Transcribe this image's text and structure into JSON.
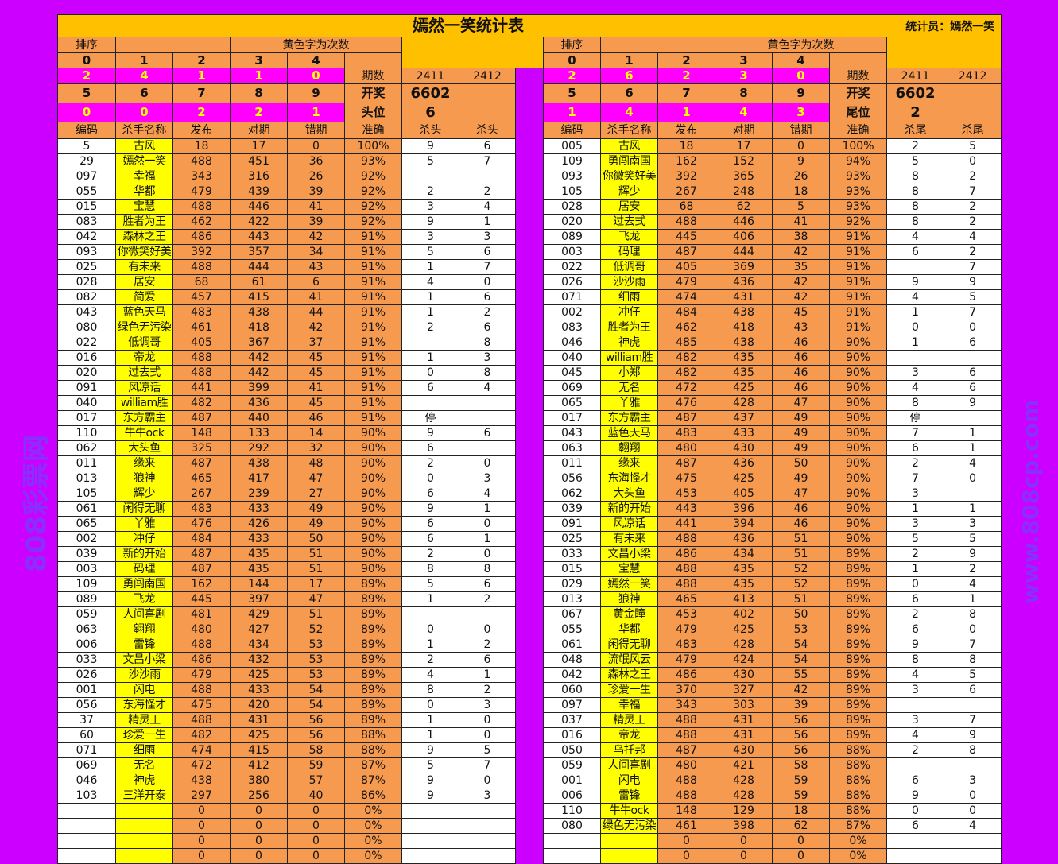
{
  "title": "嫣然一笑统计表",
  "statistician": "统计员：嫣然一笑",
  "watermark": {
    "line1": "808彩票网",
    "line2": "www.808cp.com"
  },
  "colors": {
    "background": "#CC00FF",
    "title_bar": "#FFC000",
    "orange": "#F59A4E",
    "magenta": "#FF00FF",
    "name_yellow": "#FFFF00"
  },
  "left": {
    "sort_label": "排序",
    "yellow_note": "黄色字为次数",
    "digits_a": [
      "0",
      "1",
      "2",
      "3",
      "4"
    ],
    "counts_a": [
      "2",
      "4",
      "1",
      "1",
      "0"
    ],
    "digits_b": [
      "5",
      "6",
      "7",
      "8",
      "9"
    ],
    "counts_b": [
      "0",
      "0",
      "2",
      "2",
      "1"
    ],
    "period_label": "期数",
    "periods": [
      "2411",
      "2412"
    ],
    "draw_label": "开奖",
    "draw": "6602",
    "position_label": "头位",
    "position_value": "6",
    "columns": [
      "编码",
      "杀手名称",
      "发布",
      "对期",
      "错期",
      "准确",
      "杀头",
      "杀头"
    ],
    "rows": [
      [
        "5",
        "古风",
        "18",
        "17",
        "0",
        "100%",
        "9",
        "6"
      ],
      [
        "29",
        "嫣然一笑",
        "488",
        "451",
        "36",
        "93%",
        "5",
        "7"
      ],
      [
        "097",
        "幸福",
        "343",
        "316",
        "26",
        "92%",
        "",
        ""
      ],
      [
        "055",
        "华都",
        "479",
        "439",
        "39",
        "92%",
        "2",
        "2"
      ],
      [
        "015",
        "宝慧",
        "488",
        "446",
        "41",
        "92%",
        "3",
        "4"
      ],
      [
        "083",
        "胜者为王",
        "462",
        "422",
        "39",
        "92%",
        "9",
        "1"
      ],
      [
        "042",
        "森林之王",
        "486",
        "443",
        "42",
        "91%",
        "3",
        "3"
      ],
      [
        "093",
        "你微笑好美",
        "392",
        "357",
        "34",
        "91%",
        "5",
        "6"
      ],
      [
        "025",
        "有未来",
        "488",
        "444",
        "43",
        "91%",
        "1",
        "7"
      ],
      [
        "028",
        "居安",
        "68",
        "61",
        "6",
        "91%",
        "4",
        "0"
      ],
      [
        "082",
        "简爱",
        "457",
        "415",
        "41",
        "91%",
        "1",
        "6"
      ],
      [
        "043",
        "蓝色天马",
        "483",
        "438",
        "44",
        "91%",
        "1",
        "2"
      ],
      [
        "080",
        "绿色无污染",
        "461",
        "418",
        "42",
        "91%",
        "2",
        "6"
      ],
      [
        "022",
        "低调哥",
        "405",
        "367",
        "37",
        "91%",
        "",
        "8"
      ],
      [
        "016",
        "帝龙",
        "488",
        "442",
        "45",
        "91%",
        "1",
        "3"
      ],
      [
        "020",
        "过去式",
        "488",
        "442",
        "45",
        "91%",
        "0",
        "8"
      ],
      [
        "091",
        "风凉话",
        "441",
        "399",
        "41",
        "91%",
        "6",
        "4"
      ],
      [
        "040",
        "william胜",
        "482",
        "436",
        "45",
        "91%",
        "",
        ""
      ],
      [
        "017",
        "东方霸主",
        "487",
        "440",
        "46",
        "91%",
        "停",
        ""
      ],
      [
        "110",
        "牛牛ock",
        "148",
        "133",
        "14",
        "90%",
        "9",
        "6"
      ],
      [
        "062",
        "大头鱼",
        "325",
        "292",
        "32",
        "90%",
        "6",
        ""
      ],
      [
        "011",
        "缘来",
        "487",
        "438",
        "48",
        "90%",
        "2",
        "0"
      ],
      [
        "013",
        "狼神",
        "465",
        "417",
        "47",
        "90%",
        "0",
        "3"
      ],
      [
        "105",
        "辉少",
        "267",
        "239",
        "27",
        "90%",
        "6",
        "4"
      ],
      [
        "061",
        "闲得无聊",
        "483",
        "433",
        "49",
        "90%",
        "9",
        "1"
      ],
      [
        "065",
        "丫雅",
        "476",
        "426",
        "49",
        "90%",
        "6",
        "0"
      ],
      [
        "002",
        "冲仔",
        "484",
        "433",
        "50",
        "90%",
        "6",
        "1"
      ],
      [
        "039",
        "新的开始",
        "487",
        "435",
        "51",
        "90%",
        "2",
        "0"
      ],
      [
        "003",
        "码理",
        "487",
        "435",
        "51",
        "90%",
        "8",
        "8"
      ],
      [
        "109",
        "勇闯南国",
        "162",
        "144",
        "17",
        "89%",
        "5",
        "6"
      ],
      [
        "089",
        "飞龙",
        "445",
        "397",
        "47",
        "89%",
        "1",
        "2"
      ],
      [
        "059",
        "人间喜剧",
        "481",
        "429",
        "51",
        "89%",
        "",
        ""
      ],
      [
        "063",
        "翱翔",
        "480",
        "427",
        "52",
        "89%",
        "0",
        "0"
      ],
      [
        "006",
        "雷锋",
        "488",
        "434",
        "53",
        "89%",
        "1",
        "2"
      ],
      [
        "033",
        "文昌小梁",
        "486",
        "432",
        "53",
        "89%",
        "2",
        "6"
      ],
      [
        "026",
        "沙沙雨",
        "479",
        "425",
        "53",
        "89%",
        "4",
        "1"
      ],
      [
        "001",
        "闪电",
        "488",
        "433",
        "54",
        "89%",
        "8",
        "2"
      ],
      [
        "056",
        "东海怪才",
        "475",
        "420",
        "54",
        "89%",
        "0",
        "3"
      ],
      [
        "37",
        "精灵王",
        "488",
        "431",
        "56",
        "89%",
        "1",
        "0"
      ],
      [
        "60",
        "珍爱一生",
        "482",
        "425",
        "56",
        "88%",
        "1",
        "0"
      ],
      [
        "071",
        "细雨",
        "474",
        "415",
        "58",
        "88%",
        "9",
        "5"
      ],
      [
        "069",
        "无名",
        "472",
        "412",
        "59",
        "87%",
        "5",
        "7"
      ],
      [
        "046",
        "神虎",
        "438",
        "380",
        "57",
        "87%",
        "9",
        "0"
      ],
      [
        "103",
        "三洋开泰",
        "297",
        "256",
        "40",
        "86%",
        "9",
        "3"
      ],
      [
        "",
        "",
        "0",
        "0",
        "0",
        "0%",
        "",
        ""
      ],
      [
        "",
        "",
        "0",
        "0",
        "0",
        "0%",
        "",
        ""
      ],
      [
        "",
        "",
        "0",
        "0",
        "0",
        "0%",
        "",
        ""
      ],
      [
        "",
        "",
        "0",
        "0",
        "0",
        "0%",
        "",
        ""
      ]
    ]
  },
  "right": {
    "sort_label": "排序",
    "yellow_note": "黄色字为次数",
    "digits_a": [
      "0",
      "1",
      "2",
      "3",
      "4"
    ],
    "counts_a": [
      "2",
      "6",
      "2",
      "3",
      "0"
    ],
    "digits_b": [
      "5",
      "6",
      "7",
      "8",
      "9"
    ],
    "counts_b": [
      "1",
      "4",
      "1",
      "4",
      "3"
    ],
    "period_label": "期数",
    "periods": [
      "2411",
      "2412"
    ],
    "draw_label": "开奖",
    "draw": "6602",
    "position_label": "尾位",
    "position_value": "2",
    "columns": [
      "编码",
      "杀手名称",
      "发布",
      "对期",
      "错期",
      "准确",
      "杀尾",
      "杀尾"
    ],
    "rows": [
      [
        "005",
        "古风",
        "18",
        "17",
        "0",
        "100%",
        "2",
        "5"
      ],
      [
        "109",
        "勇闯南国",
        "162",
        "152",
        "9",
        "94%",
        "5",
        "0"
      ],
      [
        "093",
        "你微笑好美",
        "392",
        "365",
        "26",
        "93%",
        "8",
        "2"
      ],
      [
        "105",
        "辉少",
        "267",
        "248",
        "18",
        "93%",
        "8",
        "7"
      ],
      [
        "028",
        "居安",
        "68",
        "62",
        "5",
        "93%",
        "8",
        "2"
      ],
      [
        "020",
        "过去式",
        "488",
        "446",
        "41",
        "92%",
        "8",
        "2"
      ],
      [
        "089",
        "飞龙",
        "445",
        "406",
        "38",
        "91%",
        "4",
        "4"
      ],
      [
        "003",
        "码理",
        "487",
        "444",
        "42",
        "91%",
        "6",
        "2"
      ],
      [
        "022",
        "低调哥",
        "405",
        "369",
        "35",
        "91%",
        "",
        "7"
      ],
      [
        "026",
        "沙沙雨",
        "479",
        "436",
        "42",
        "91%",
        "9",
        "9"
      ],
      [
        "071",
        "细雨",
        "474",
        "431",
        "42",
        "91%",
        "4",
        "5"
      ],
      [
        "002",
        "冲仔",
        "484",
        "438",
        "45",
        "91%",
        "1",
        "7"
      ],
      [
        "083",
        "胜者为王",
        "462",
        "418",
        "43",
        "91%",
        "0",
        "0"
      ],
      [
        "046",
        "神虎",
        "485",
        "438",
        "46",
        "90%",
        "1",
        "6"
      ],
      [
        "040",
        "william胜",
        "482",
        "435",
        "46",
        "90%",
        "",
        ""
      ],
      [
        "045",
        "小郑",
        "482",
        "435",
        "46",
        "90%",
        "3",
        "6"
      ],
      [
        "069",
        "无名",
        "472",
        "425",
        "46",
        "90%",
        "4",
        "6"
      ],
      [
        "065",
        "丫雅",
        "476",
        "428",
        "47",
        "90%",
        "8",
        "9"
      ],
      [
        "017",
        "东方霸主",
        "487",
        "437",
        "49",
        "90%",
        "停",
        ""
      ],
      [
        "043",
        "蓝色天马",
        "483",
        "433",
        "49",
        "90%",
        "7",
        "1"
      ],
      [
        "063",
        "翱翔",
        "480",
        "430",
        "49",
        "90%",
        "6",
        "1"
      ],
      [
        "011",
        "缘来",
        "487",
        "436",
        "50",
        "90%",
        "2",
        "4"
      ],
      [
        "056",
        "东海怪才",
        "475",
        "425",
        "49",
        "90%",
        "7",
        "0"
      ],
      [
        "062",
        "大头鱼",
        "453",
        "405",
        "47",
        "90%",
        "3",
        ""
      ],
      [
        "039",
        "新的开始",
        "443",
        "396",
        "46",
        "90%",
        "1",
        "1"
      ],
      [
        "091",
        "风凉话",
        "441",
        "394",
        "46",
        "90%",
        "3",
        "3"
      ],
      [
        "025",
        "有未来",
        "488",
        "436",
        "51",
        "90%",
        "5",
        "5"
      ],
      [
        "033",
        "文昌小梁",
        "486",
        "434",
        "51",
        "89%",
        "2",
        "9"
      ],
      [
        "015",
        "宝慧",
        "488",
        "435",
        "52",
        "89%",
        "1",
        "2"
      ],
      [
        "029",
        "嫣然一笑",
        "488",
        "435",
        "52",
        "89%",
        "0",
        "4"
      ],
      [
        "013",
        "狼神",
        "465",
        "413",
        "51",
        "89%",
        "6",
        "1"
      ],
      [
        "067",
        "黄金瞳",
        "453",
        "402",
        "50",
        "89%",
        "2",
        "8"
      ],
      [
        "055",
        "华都",
        "479",
        "425",
        "53",
        "89%",
        "6",
        "0"
      ],
      [
        "061",
        "闲得无聊",
        "483",
        "428",
        "54",
        "89%",
        "9",
        "7"
      ],
      [
        "048",
        "流氓风云",
        "479",
        "424",
        "54",
        "89%",
        "8",
        "8"
      ],
      [
        "042",
        "森林之王",
        "486",
        "430",
        "55",
        "89%",
        "4",
        "5"
      ],
      [
        "060",
        "珍爱一生",
        "370",
        "327",
        "42",
        "89%",
        "3",
        "6"
      ],
      [
        "097",
        "幸福",
        "343",
        "303",
        "39",
        "89%",
        "",
        ""
      ],
      [
        "037",
        "精灵王",
        "488",
        "431",
        "56",
        "89%",
        "3",
        "7"
      ],
      [
        "016",
        "帝龙",
        "488",
        "431",
        "56",
        "89%",
        "4",
        "9"
      ],
      [
        "050",
        "乌托邦",
        "487",
        "430",
        "56",
        "88%",
        "2",
        "8"
      ],
      [
        "059",
        "人间喜剧",
        "480",
        "421",
        "58",
        "88%",
        "",
        ""
      ],
      [
        "001",
        "闪电",
        "488",
        "428",
        "59",
        "88%",
        "6",
        "3"
      ],
      [
        "006",
        "雷锋",
        "488",
        "428",
        "59",
        "88%",
        "9",
        "0"
      ],
      [
        "110",
        "牛牛ock",
        "148",
        "129",
        "18",
        "88%",
        "0",
        "0"
      ],
      [
        "080",
        "绿色无污染",
        "461",
        "398",
        "62",
        "87%",
        "6",
        "4"
      ],
      [
        "",
        "",
        "0",
        "0",
        "0",
        "0%",
        "",
        ""
      ],
      [
        "",
        "",
        "0",
        "0",
        "0",
        "0%",
        "",
        ""
      ]
    ]
  }
}
